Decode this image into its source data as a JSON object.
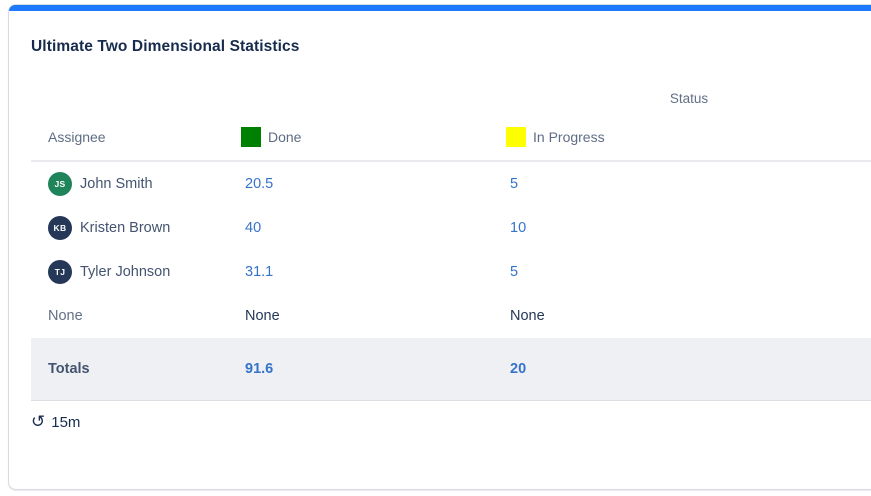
{
  "card": {
    "accent_color": "#1D7AFC",
    "title": "Ultimate Two Dimensional Statistics",
    "refresh_interval": "15m",
    "refresh_icon_glyph": "↺"
  },
  "table": {
    "group_header": "Status",
    "row_dimension_label": "Assignee",
    "columns": [
      {
        "label": "Done",
        "swatch_color": "#008000"
      },
      {
        "label": "In Progress",
        "swatch_color": "#FFFF00"
      }
    ],
    "rows": [
      {
        "assignee": "John Smith",
        "initials": "JS",
        "avatar_color": "#1F845A",
        "values": [
          "20.5",
          "5"
        ]
      },
      {
        "assignee": "Kristen Brown",
        "initials": "KB",
        "avatar_color": "#253858",
        "values": [
          "40",
          "10"
        ]
      },
      {
        "assignee": "Tyler Johnson",
        "initials": "TJ",
        "avatar_color": "#253858",
        "values": [
          "31.1",
          "5"
        ]
      }
    ],
    "none_row": {
      "label": "None",
      "values": [
        "None",
        "None"
      ]
    },
    "totals": {
      "label": "Totals",
      "values": [
        "91.6",
        "20"
      ]
    }
  }
}
